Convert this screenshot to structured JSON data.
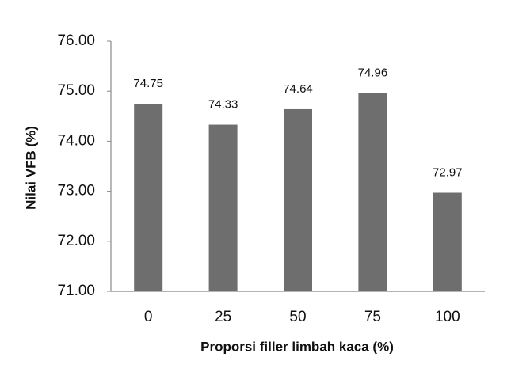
{
  "chart_data": {
    "type": "bar",
    "x_label": "Proporsi filler limbah kaca (%)",
    "y_label": "Nilai VFB (%)",
    "categories": [
      "0",
      "25",
      "50",
      "75",
      "100"
    ],
    "values": [
      74.75,
      74.33,
      74.64,
      74.96,
      72.97
    ],
    "color": "#6e6e6e",
    "ylim": [
      71,
      76
    ],
    "yticks": [
      {
        "value": 71,
        "label": "71.00"
      },
      {
        "value": 72,
        "label": "72.00"
      },
      {
        "value": 73,
        "label": "73.00"
      },
      {
        "value": 74,
        "label": "74.00"
      },
      {
        "value": 75,
        "label": "75.00"
      },
      {
        "value": 76,
        "label": "76.00"
      }
    ],
    "grid": false
  }
}
